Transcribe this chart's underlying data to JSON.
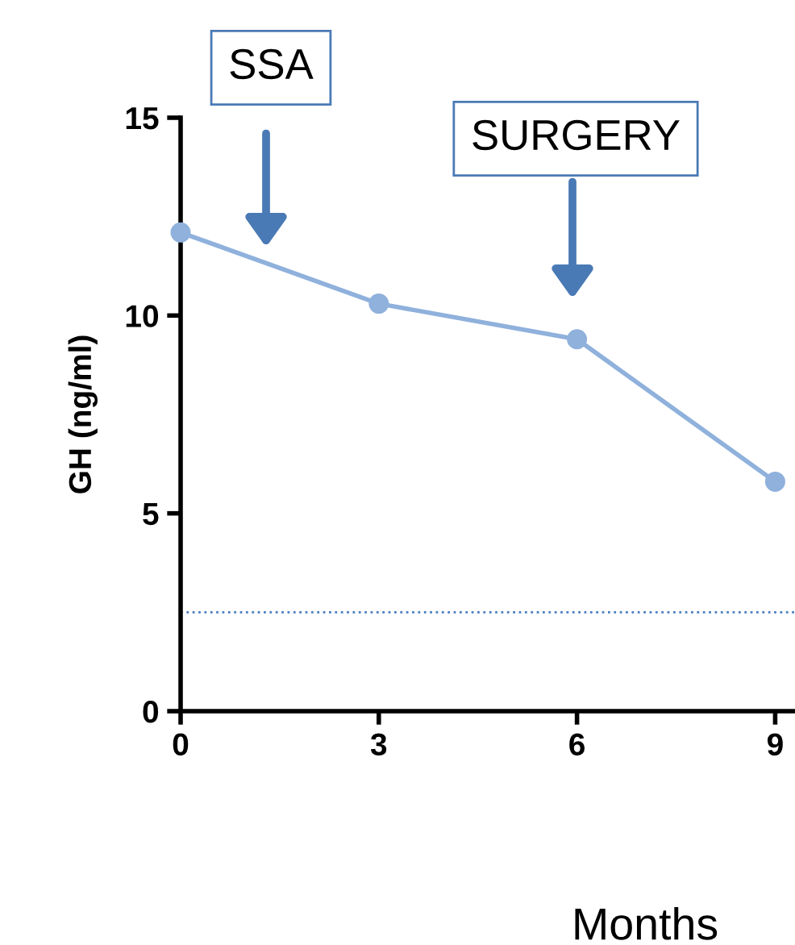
{
  "chart_data": {
    "type": "line",
    "xlabel": "Months",
    "ylabel": "GH (ng/ml)",
    "x": [
      0,
      3,
      6,
      9
    ],
    "series": [
      {
        "color": "#8fb1dc",
        "values": [
          12.1,
          10.3,
          9.4,
          5.8
        ]
      }
    ],
    "xlim": [
      0,
      9.3
    ],
    "xticks": [
      0,
      3,
      6,
      9
    ],
    "ylim": [
      0,
      15
    ],
    "yticks": [
      0,
      5,
      10,
      15
    ],
    "marker": "circle",
    "line_style": "solid",
    "grid": false,
    "legend": false,
    "ref_lines": [
      {
        "axis": "y",
        "value": 2.5,
        "color": "#4a7fc0",
        "line_style": "dotted"
      }
    ],
    "annotations": [
      "SSA",
      "SURGERY"
    ]
  }
}
